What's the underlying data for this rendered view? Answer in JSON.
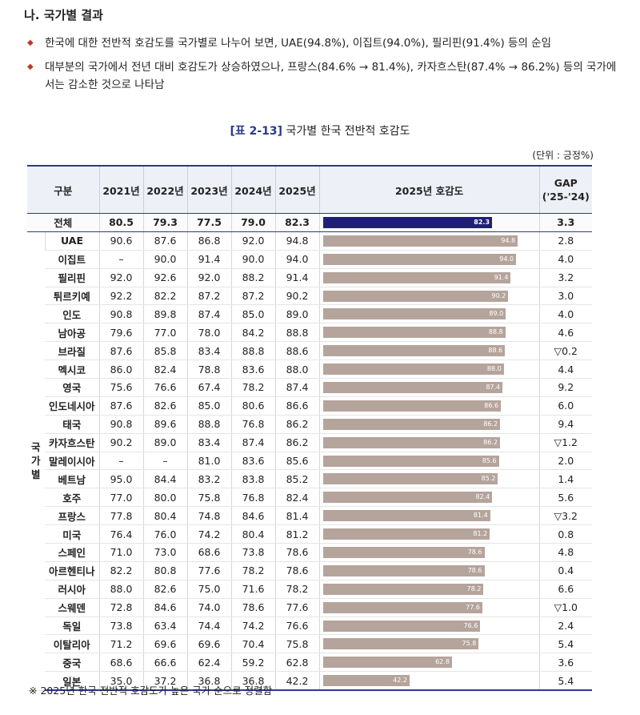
{
  "section_title": "나. 국가별 결과",
  "bullets": [
    "한국에 대한 전반적 호감도를 국가별로 나누어 보면, UAE(94.8%), 이집트(94.0%), 필리핀(91.4%) 등의 순임",
    "대부분의 국가에서 전년 대비 호감도가 상승하였으나, 프랑스(84.6% → 81.4%), 카자흐스탄(87.4% → 86.2%) 등의 국가에서는 감소한 것으로 나타남"
  ],
  "caption_code": "[표 2-13]",
  "caption_text": "국가별 한국 전반적 호감도",
  "unit": "(단위 : 긍정%)",
  "headers": {
    "category": "구분",
    "y2021": "2021년",
    "y2022": "2022년",
    "y2023": "2023년",
    "y2024": "2024년",
    "y2025": "2025년",
    "bar": "2025년 호감도",
    "gap": "GAP\n('25-'24)"
  },
  "group_label": "국\n가\n별",
  "total": {
    "name": "전체",
    "v2021": "80.5",
    "v2022": "79.3",
    "v2023": "77.5",
    "v2024": "79.0",
    "v2025": "82.3",
    "bar": 82.3,
    "gap": "3.3"
  },
  "rows": [
    {
      "name": "UAE",
      "v2021": "90.6",
      "v2022": "87.6",
      "v2023": "86.8",
      "v2024": "92.0",
      "v2025": "94.8",
      "bar": 94.8,
      "gap": "2.8"
    },
    {
      "name": "이집트",
      "v2021": "–",
      "v2022": "90.0",
      "v2023": "91.4",
      "v2024": "90.0",
      "v2025": "94.0",
      "bar": 94.0,
      "gap": "4.0"
    },
    {
      "name": "필리핀",
      "v2021": "92.0",
      "v2022": "92.6",
      "v2023": "92.0",
      "v2024": "88.2",
      "v2025": "91.4",
      "bar": 91.4,
      "gap": "3.2"
    },
    {
      "name": "튀르키예",
      "v2021": "92.2",
      "v2022": "82.2",
      "v2023": "87.2",
      "v2024": "87.2",
      "v2025": "90.2",
      "bar": 90.2,
      "gap": "3.0"
    },
    {
      "name": "인도",
      "v2021": "90.8",
      "v2022": "89.8",
      "v2023": "87.4",
      "v2024": "85.0",
      "v2025": "89.0",
      "bar": 89.0,
      "gap": "4.0"
    },
    {
      "name": "남아공",
      "v2021": "79.6",
      "v2022": "77.0",
      "v2023": "78.0",
      "v2024": "84.2",
      "v2025": "88.8",
      "bar": 88.8,
      "gap": "4.6"
    },
    {
      "name": "브라질",
      "v2021": "87.6",
      "v2022": "85.8",
      "v2023": "83.4",
      "v2024": "88.8",
      "v2025": "88.6",
      "bar": 88.6,
      "gap": "▽0.2"
    },
    {
      "name": "멕시코",
      "v2021": "86.0",
      "v2022": "82.4",
      "v2023": "78.8",
      "v2024": "83.6",
      "v2025": "88.0",
      "bar": 88.0,
      "gap": "4.4"
    },
    {
      "name": "영국",
      "v2021": "75.6",
      "v2022": "76.6",
      "v2023": "67.4",
      "v2024": "78.2",
      "v2025": "87.4",
      "bar": 87.4,
      "gap": "9.2"
    },
    {
      "name": "인도네시아",
      "v2021": "87.6",
      "v2022": "82.6",
      "v2023": "85.0",
      "v2024": "80.6",
      "v2025": "86.6",
      "bar": 86.6,
      "gap": "6.0"
    },
    {
      "name": "태국",
      "v2021": "90.8",
      "v2022": "89.6",
      "v2023": "88.8",
      "v2024": "76.8",
      "v2025": "86.2",
      "bar": 86.2,
      "gap": "9.4"
    },
    {
      "name": "카자흐스탄",
      "v2021": "90.2",
      "v2022": "89.0",
      "v2023": "83.4",
      "v2024": "87.4",
      "v2025": "86.2",
      "bar": 86.2,
      "gap": "▽1.2"
    },
    {
      "name": "말레이시아",
      "v2021": "–",
      "v2022": "–",
      "v2023": "81.0",
      "v2024": "83.6",
      "v2025": "85.6",
      "bar": 85.6,
      "gap": "2.0"
    },
    {
      "name": "베트남",
      "v2021": "95.0",
      "v2022": "84.4",
      "v2023": "83.2",
      "v2024": "83.8",
      "v2025": "85.2",
      "bar": 85.2,
      "gap": "1.4"
    },
    {
      "name": "호주",
      "v2021": "77.0",
      "v2022": "80.0",
      "v2023": "75.8",
      "v2024": "76.8",
      "v2025": "82.4",
      "bar": 82.4,
      "gap": "5.6"
    },
    {
      "name": "프랑스",
      "v2021": "77.8",
      "v2022": "80.4",
      "v2023": "74.8",
      "v2024": "84.6",
      "v2025": "81.4",
      "bar": 81.4,
      "gap": "▽3.2"
    },
    {
      "name": "미국",
      "v2021": "76.4",
      "v2022": "76.0",
      "v2023": "74.2",
      "v2024": "80.4",
      "v2025": "81.2",
      "bar": 81.2,
      "gap": "0.8"
    },
    {
      "name": "스페인",
      "v2021": "71.0",
      "v2022": "73.0",
      "v2023": "68.6",
      "v2024": "73.8",
      "v2025": "78.6",
      "bar": 78.6,
      "gap": "4.8"
    },
    {
      "name": "아르헨티나",
      "v2021": "82.2",
      "v2022": "80.8",
      "v2023": "77.6",
      "v2024": "78.2",
      "v2025": "78.6",
      "bar": 78.6,
      "gap": "0.4"
    },
    {
      "name": "러시아",
      "v2021": "88.0",
      "v2022": "82.6",
      "v2023": "75.0",
      "v2024": "71.6",
      "v2025": "78.2",
      "bar": 78.2,
      "gap": "6.6"
    },
    {
      "name": "스웨덴",
      "v2021": "72.8",
      "v2022": "84.6",
      "v2023": "74.0",
      "v2024": "78.6",
      "v2025": "77.6",
      "bar": 77.6,
      "gap": "▽1.0"
    },
    {
      "name": "독일",
      "v2021": "73.8",
      "v2022": "63.4",
      "v2023": "74.4",
      "v2024": "74.2",
      "v2025": "76.6",
      "bar": 76.6,
      "gap": "2.4"
    },
    {
      "name": "이탈리아",
      "v2021": "71.2",
      "v2022": "69.6",
      "v2023": "69.6",
      "v2024": "70.4",
      "v2025": "75.8",
      "bar": 75.8,
      "gap": "5.4"
    },
    {
      "name": "중국",
      "v2021": "68.6",
      "v2022": "66.6",
      "v2023": "62.4",
      "v2024": "59.2",
      "v2025": "62.8",
      "bar": 62.8,
      "gap": "3.6"
    },
    {
      "name": "일본",
      "v2021": "35.0",
      "v2022": "37.2",
      "v2023": "36.8",
      "v2024": "36.8",
      "v2025": "42.2",
      "bar": 42.2,
      "gap": "5.4"
    }
  ],
  "bar_scale_max": 100,
  "colors": {
    "total_bar": "#1f1f7a",
    "country_bar": "#b5a49b",
    "accent": "#2a3a8c"
  },
  "note": "※ 2025년 한국 전반적 호감도가 높은 국가 순으로 정렬함"
}
